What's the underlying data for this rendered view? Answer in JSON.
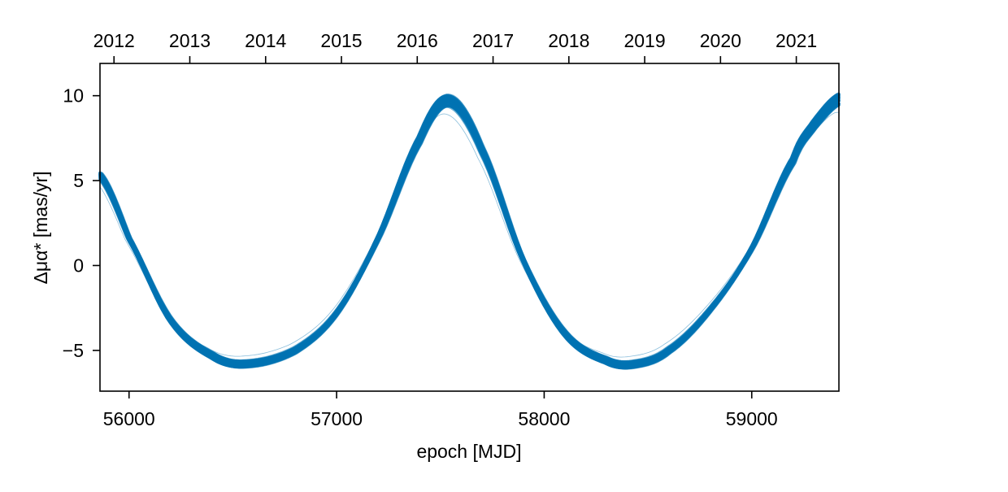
{
  "chart_data": {
    "type": "line",
    "xlabel": "epoch [MJD]",
    "ylabel": "Δμα* [mas/yr]",
    "xlim": [
      55860,
      59420
    ],
    "ylim": [
      -7.4,
      11.9
    ],
    "x_ticks": [
      56000,
      57000,
      58000,
      59000
    ],
    "y_ticks": [
      -5,
      0,
      5,
      10
    ],
    "y_tick_labels": [
      "−5",
      "0",
      "5",
      "10"
    ],
    "top_axis": {
      "label_unit": "year",
      "ticks": [
        2012,
        2013,
        2014,
        2015,
        2016,
        2017,
        2018,
        2019,
        2020,
        2021
      ]
    },
    "grid": false,
    "legend": "none",
    "color": "#0072b2",
    "series": [
      {
        "description_type": "posterior draws (median curve)",
        "x": [
          55860,
          56000,
          56200,
          56400,
          56560,
          56800,
          57000,
          57200,
          57400,
          57540,
          57700,
          57900,
          58100,
          58300,
          58440,
          58600,
          58800,
          59000,
          59200,
          59300,
          59420
        ],
        "y": [
          5.3,
          1.6,
          -3.2,
          -5.3,
          -5.8,
          -5.0,
          -2.8,
          1.6,
          7.4,
          9.7,
          6.8,
          0.3,
          -4.0,
          -5.6,
          -5.8,
          -5.0,
          -2.6,
          1.0,
          6.2,
          8.3,
          9.8
        ]
      }
    ]
  }
}
